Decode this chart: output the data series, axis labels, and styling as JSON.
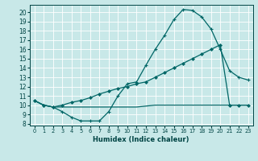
{
  "xlabel": "Humidex (Indice chaleur)",
  "background_color": "#c8e8e8",
  "line_color": "#006666",
  "xlim": [
    -0.5,
    23.5
  ],
  "ylim": [
    7.8,
    20.8
  ],
  "xticks": [
    0,
    1,
    2,
    3,
    4,
    5,
    6,
    7,
    8,
    9,
    10,
    11,
    12,
    13,
    14,
    15,
    16,
    17,
    18,
    19,
    20,
    21,
    22,
    23
  ],
  "yticks": [
    8,
    9,
    10,
    11,
    12,
    13,
    14,
    15,
    16,
    17,
    18,
    19,
    20
  ],
  "line1_x": [
    0,
    1,
    2,
    3,
    4,
    5,
    6,
    7,
    8,
    9,
    10,
    11,
    12,
    13,
    14,
    15,
    16,
    17,
    18,
    19,
    20,
    21,
    22,
    23
  ],
  "line1_y": [
    10.5,
    10.0,
    9.8,
    9.3,
    8.7,
    8.3,
    8.3,
    8.3,
    9.3,
    11.0,
    12.3,
    12.5,
    14.3,
    16.0,
    17.5,
    19.2,
    20.3,
    20.2,
    19.5,
    18.2,
    16.0,
    13.7,
    13.0,
    12.7
  ],
  "line2_x": [
    0,
    1,
    2,
    3,
    4,
    5,
    6,
    7,
    8,
    9,
    10,
    11,
    12,
    13,
    14,
    15,
    16,
    17,
    18,
    19,
    20,
    21,
    22,
    23
  ],
  "line2_y": [
    10.5,
    10.0,
    9.8,
    10.0,
    10.3,
    10.5,
    10.8,
    11.2,
    11.5,
    11.8,
    12.0,
    12.3,
    12.5,
    13.0,
    13.5,
    14.0,
    14.5,
    15.0,
    15.5,
    16.0,
    16.5,
    10.0,
    10.0,
    10.0
  ],
  "line3_x": [
    0,
    1,
    2,
    3,
    4,
    5,
    6,
    7,
    8,
    9,
    10,
    11,
    12,
    13,
    14,
    15,
    16,
    17,
    18,
    19,
    20,
    21,
    22,
    23
  ],
  "line3_y": [
    10.5,
    10.0,
    9.8,
    9.8,
    9.8,
    9.8,
    9.8,
    9.8,
    9.8,
    9.8,
    9.8,
    9.8,
    9.9,
    10.0,
    10.0,
    10.0,
    10.0,
    10.0,
    10.0,
    10.0,
    10.0,
    10.0,
    10.0,
    10.0
  ],
  "xtick_fontsize": 4.8,
  "ytick_fontsize": 5.5,
  "xlabel_fontsize": 6.0
}
